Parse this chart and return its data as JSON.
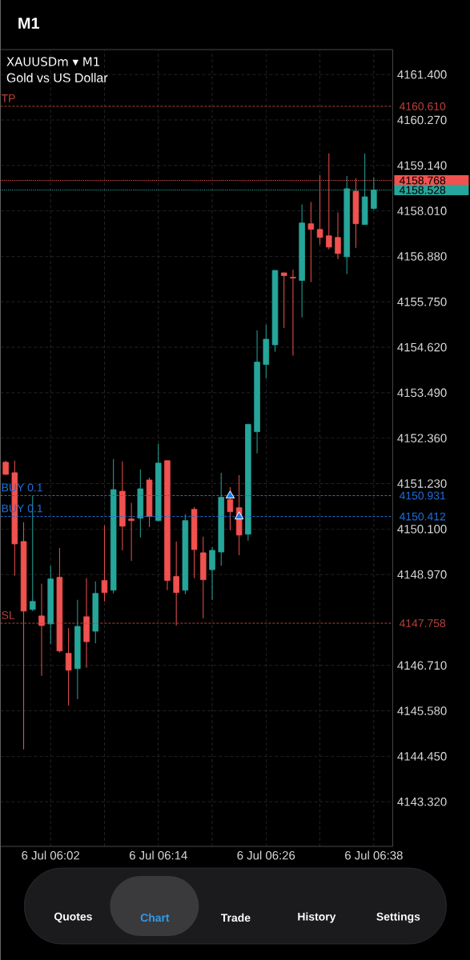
{
  "chart_data": {
    "type": "candlestick",
    "title": "XAUUSDm ▾ M1",
    "subtitle": "Gold vs US Dollar",
    "categories": [
      null,
      null,
      null,
      null,
      null,
      "6 Jul 06:02",
      null,
      null,
      null,
      null,
      null,
      null,
      null,
      null,
      null,
      null,
      null,
      "6 Jul 06:14",
      null,
      null,
      null,
      null,
      null,
      null,
      null,
      null,
      null,
      null,
      null,
      "6 Jul 06:26",
      null,
      null,
      null,
      null,
      null,
      null,
      null,
      null,
      null,
      null,
      null,
      "6 Jul 06:38"
    ],
    "ohlc": [
      [
        4151.76,
        4151.8,
        4151.44,
        4151.46
      ],
      [
        4151.5,
        4151.8,
        4148.94,
        4149.73
      ],
      [
        4149.79,
        4150.27,
        4144.62,
        4148.06
      ],
      [
        4148.1,
        4150.92,
        4148.06,
        4148.3
      ],
      [
        4147.94,
        4148.74,
        4146.45,
        4147.7
      ],
      [
        4147.74,
        4149.19,
        4147.24,
        4148.86
      ],
      [
        4148.9,
        4149.63,
        4147.03,
        4147.07
      ],
      [
        4147.01,
        4147.64,
        4145.71,
        4146.59
      ],
      [
        4146.63,
        4148.34,
        4145.87,
        4147.68
      ],
      [
        4147.92,
        4148.88,
        4146.65,
        4147.3
      ],
      [
        4147.56,
        4148.8,
        4147.26,
        4148.5
      ],
      [
        4148.82,
        4150.19,
        4148.3,
        4148.52
      ],
      [
        4148.58,
        4151.84,
        4148.5,
        4151.08
      ],
      [
        4151.04,
        4151.78,
        4149.57,
        4150.17
      ],
      [
        4150.35,
        4150.75,
        4149.31,
        4150.31
      ],
      [
        4150.37,
        4151.58,
        4149.89,
        4151.1
      ],
      [
        4151.32,
        4151.38,
        4150.15,
        4150.41
      ],
      [
        4150.31,
        4152.22,
        4150.29,
        4151.74
      ],
      [
        4151.8,
        4151.8,
        4148.58,
        4148.82
      ],
      [
        4148.92,
        4149.79,
        4147.7,
        4148.52
      ],
      [
        4148.58,
        4150.47,
        4148.48,
        4150.31
      ],
      [
        4150.59,
        4150.65,
        4148.88,
        4149.59
      ],
      [
        4149.51,
        4149.91,
        4147.88,
        4148.84
      ],
      [
        4149.09,
        4149.65,
        4148.34,
        4149.57
      ],
      [
        4149.53,
        4151.5,
        4149.19,
        4150.89
      ],
      [
        4150.83,
        4151.14,
        4150.07,
        4150.53
      ],
      [
        4150.63,
        4151.44,
        4149.45,
        4149.95
      ],
      [
        4149.97,
        4152.72,
        4149.81,
        4152.7
      ],
      [
        4152.52,
        4155.04,
        4151.98,
        4154.25
      ],
      [
        4154.19,
        4155.18,
        4153.85,
        4154.82
      ],
      [
        4154.68,
        4156.53,
        4154.51,
        4156.53
      ],
      [
        4156.47,
        4156.47,
        4155.1,
        4156.4
      ],
      [
        4156.36,
        4156.55,
        4154.41,
        4156.34
      ],
      [
        4156.28,
        4158.17,
        4155.36,
        4157.71
      ],
      [
        4157.69,
        4158.23,
        4156.24,
        4157.55
      ],
      [
        4157.55,
        4158.9,
        4157.17,
        4157.35
      ],
      [
        4157.39,
        4159.44,
        4157.05,
        4157.11
      ],
      [
        4157.35,
        4157.97,
        4156.81,
        4156.95
      ],
      [
        4156.87,
        4158.88,
        4156.44,
        4158.56
      ],
      [
        4158.5,
        4158.82,
        4157.09,
        4157.69
      ],
      [
        4157.67,
        4159.44,
        4157.67,
        4158.36
      ],
      [
        4158.07,
        4158.84,
        4158.03,
        4158.53
      ]
    ],
    "colors": [
      "#f0524f",
      "#f0524f",
      "#f0524f",
      "#26a69a",
      "#f0524f",
      "#26a69a",
      "#f0524f",
      "#f0524f",
      "#26a69a",
      "#f0524f",
      "#26a69a",
      "#f0524f",
      "#26a69a",
      "#f0524f",
      "#f0524f",
      "#26a69a",
      "#f0524f",
      "#26a69a",
      "#f0524f",
      "#f0524f",
      "#26a69a",
      "#f0524f",
      "#f0524f",
      "#26a69a",
      "#26a69a",
      "#f0524f",
      "#f0524f",
      "#26a69a",
      "#26a69a",
      "#26a69a",
      "#26a69a",
      "#f0524f",
      "#f0524f",
      "#26a69a",
      "#f0524f",
      "#f0524f",
      "#f0524f",
      "#f0524f",
      "#26a69a",
      "#f0524f",
      "#26a69a",
      "#26a69a"
    ],
    "series": [
      {
        "type": "scatter",
        "values": [
          null,
          null,
          null,
          null,
          null,
          null,
          null,
          null,
          null,
          null,
          null,
          null,
          null,
          null,
          null,
          null,
          null,
          null,
          null,
          null,
          null,
          null,
          null,
          null,
          null,
          4150.93,
          4150.41,
          null,
          null,
          null,
          null,
          null,
          null,
          null,
          null,
          null,
          null,
          null,
          null,
          null,
          null,
          null
        ],
        "color": "#1e7bf0",
        "marker": "triangle"
      }
    ],
    "ylim": [
      4142.21,
      4162.02
    ],
    "yticks": [
      {
        "value": 4161.4,
        "label": "4161.400"
      },
      {
        "value": 4160.27,
        "label": "4160.270"
      },
      {
        "value": 4159.14,
        "label": "4159.140"
      },
      {
        "value": 4158.01,
        "label": "4158.010"
      },
      {
        "value": 4156.88,
        "label": "4156.880"
      },
      {
        "value": 4155.75,
        "label": "4155.750"
      },
      {
        "value": 4154.62,
        "label": "4154.620"
      },
      {
        "value": 4153.49,
        "label": "4153.490"
      },
      {
        "value": 4152.36,
        "label": "4152.360"
      },
      {
        "value": 4151.23,
        "label": "4151.230"
      },
      {
        "value": 4150.1,
        "label": "4150.100"
      },
      {
        "value": 4148.97,
        "label": "4148.970"
      },
      {
        "value": 4146.71,
        "label": "4146.710"
      },
      {
        "value": 4145.58,
        "label": "4145.580"
      },
      {
        "value": 4144.45,
        "label": "4144.450"
      },
      {
        "value": 4143.32,
        "label": "4143.320"
      }
    ],
    "ref_lines": [
      {
        "axis": "y",
        "value": 4160.61,
        "label": "TP",
        "color": "#b8413c",
        "line_style": "dashed"
      },
      {
        "axis": "y",
        "value": 4147.758,
        "label": "SL",
        "color": "#b8413c",
        "line_style": "dashed"
      },
      {
        "axis": "y",
        "value": 4150.931,
        "label": "BUY 0.1",
        "color": "#1e6fd9",
        "line_style": "dashed"
      },
      {
        "axis": "y",
        "value": 4150.412,
        "label": "BUY 0.1",
        "color": "#1e6fd9",
        "line_style": "dashed"
      },
      {
        "axis": "y",
        "value": 4158.768,
        "color": "#f0524f",
        "line_style": "dotted"
      },
      {
        "axis": "y",
        "value": 4158.528,
        "color": "#26a69a",
        "line_style": "dotted"
      }
    ],
    "grid": true,
    "annotations": [
      "M1",
      "Quotes",
      "Chart",
      "Trade",
      "History",
      "Settings",
      "4160.610",
      "4147.758",
      "4150.931",
      "4150.412",
      "4158.768",
      "4158.528"
    ]
  }
}
